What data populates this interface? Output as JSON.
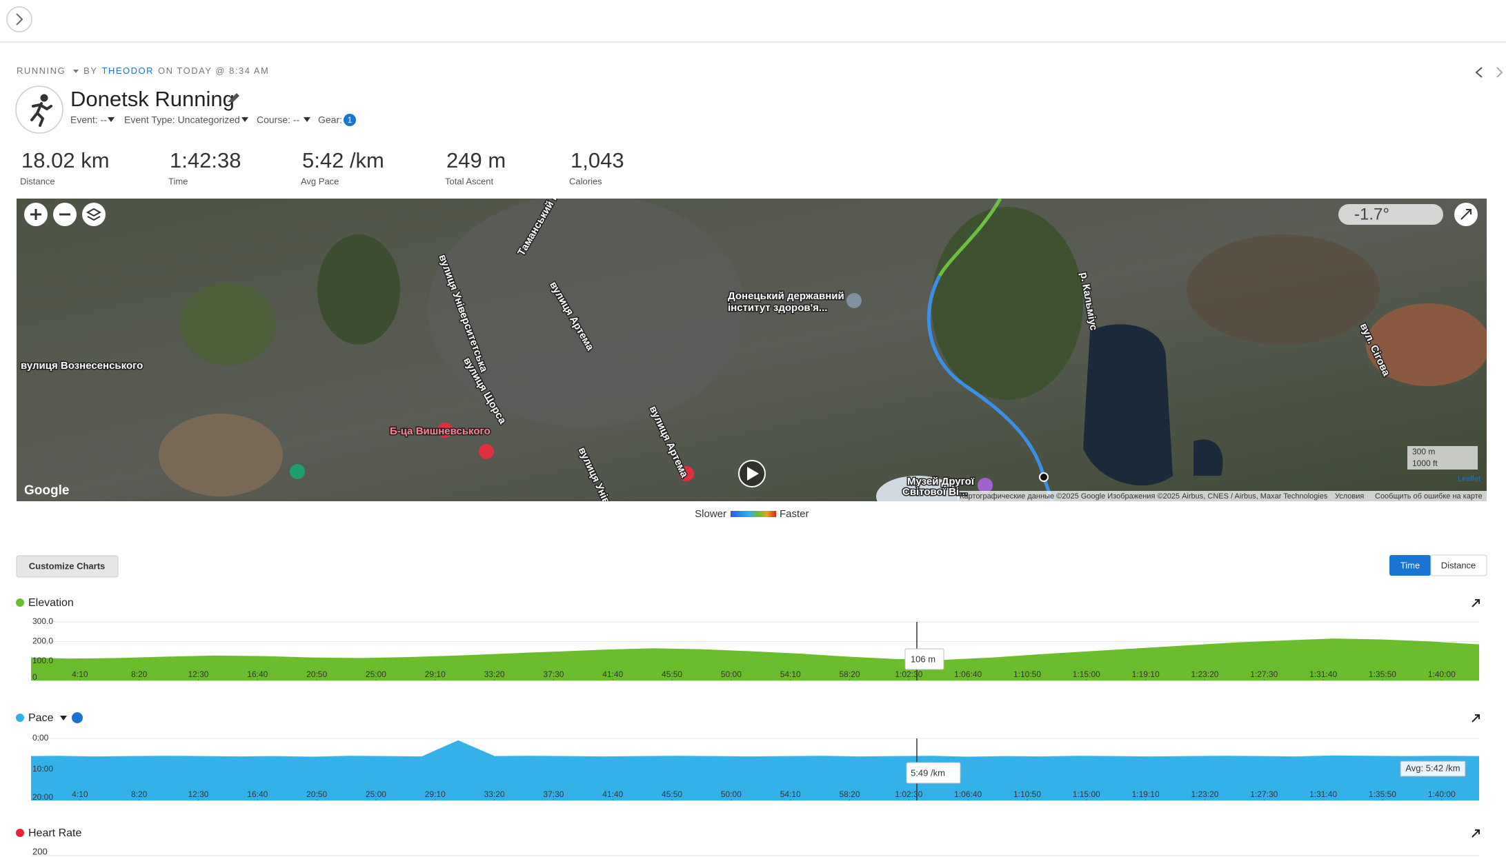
{
  "nav": {
    "activity_type": "RUNNING",
    "by": "BY",
    "user": "THEODOR",
    "when": "ON TODAY @ 8:34 AM"
  },
  "activity": {
    "title": "Donetsk Running",
    "fields": [
      "Event: --",
      "Event Type: Uncategorized",
      "Course: --",
      "Gear:"
    ],
    "gear_count": "1"
  },
  "stats": [
    {
      "value": "18.02 km",
      "label": "Distance"
    },
    {
      "value": "1:42:38",
      "label": "Time"
    },
    {
      "value": "5:42 /km",
      "label": "Avg Pace"
    },
    {
      "value": "249 m",
      "label": "Total Ascent"
    },
    {
      "value": "1,043",
      "label": "Calories"
    }
  ],
  "map": {
    "labels": [
      "вулиця Університетська",
      "Таманський проспект",
      "вулиця Артема",
      "вулиця Щорса",
      "Б-ца Вишневського",
      "Донецький державний",
      "інститут здоров'я...",
      "вулиця Вознесенського",
      "Музей Другої",
      "Світової Ві...",
      "вул. Сігова",
      "р. Кальміус",
      "вулиця Університетська",
      "вулиця Артема"
    ],
    "weather": "-1.7°",
    "brand": "Google",
    "scale_metric": "300 m",
    "scale_imperial": "1000 ft",
    "leaflet": "Leaflet",
    "attribution": "Картографические данные ©2025 Google Изображения ©2025 Airbus, CNES / Airbus, Maxar Technologies",
    "terms": "Условия",
    "report": "Сообщить об ошибке на карте"
  },
  "legend": {
    "slower": "Slower",
    "faster": "Faster"
  },
  "controls": {
    "customize": "Customize Charts",
    "toggle": [
      "Time",
      "Distance"
    ]
  },
  "charts": [
    {
      "title": "Elevation",
      "color": "#6cbd2d",
      "ylim": [
        0,
        300
      ],
      "yticks": [
        {
          "value": 300,
          "label": "300.0"
        },
        {
          "value": 200,
          "label": "200.0"
        },
        {
          "value": 100,
          "label": "100.0"
        },
        0
      ],
      "xlim": [
        0,
        6158
      ],
      "values": [
        118,
        112,
        115,
        122,
        128,
        125,
        118,
        115,
        120,
        128,
        138,
        148,
        158,
        165,
        160,
        150,
        138,
        122,
        110,
        106,
        118,
        135,
        150,
        165,
        180,
        195,
        205,
        215,
        210,
        200,
        185
      ],
      "tooltip": "106 m"
    },
    {
      "title": "Pace",
      "color": "#35b1ea",
      "ylim": [
        0,
        20
      ],
      "inverted": true,
      "yticks": [
        {
          "value": 0,
          "label": "0:00"
        },
        {
          "value": 10,
          "label": "10:00"
        },
        {
          "value": 20,
          "label": "20:00"
        }
      ],
      "xlim": [
        0,
        6158
      ],
      "values": [
        5.7,
        5.6,
        5.8,
        5.7,
        5.6,
        5.7,
        5.8,
        5.7,
        5.9,
        5.6,
        5.7,
        5.8,
        0.6,
        5.7,
        5.6,
        5.7,
        5.8,
        5.7,
        5.6,
        5.7,
        5.8,
        5.7,
        5.6,
        5.8,
        5.7,
        5.6,
        5.9,
        5.7,
        5.8,
        5.6,
        5.7,
        5.8,
        5.7,
        5.6,
        5.7,
        5.8,
        5.5,
        5.6,
        5.7,
        5.6,
        5.7
      ],
      "tooltip": "5:49 /km",
      "average": "Avg: 5:42 /km"
    },
    {
      "title": "Heart Rate",
      "color": "#e8203a",
      "yticks": [
        200
      ]
    }
  ],
  "xticks": [
    {
      "value": 250,
      "label": "4:10"
    },
    {
      "value": 500,
      "label": "8:20"
    },
    {
      "value": 750,
      "label": "12:30"
    },
    {
      "value": 1000,
      "label": "16:40"
    },
    {
      "value": 1250,
      "label": "20:50"
    },
    {
      "value": 1500,
      "label": "25:00"
    },
    {
      "value": 1750,
      "label": "29:10"
    },
    {
      "value": 2000,
      "label": "33:20"
    },
    {
      "value": 2250,
      "label": "37:30"
    },
    {
      "value": 2500,
      "label": "41:40"
    },
    {
      "value": 2750,
      "label": "45:50"
    },
    {
      "value": 3000,
      "label": "50:00"
    },
    {
      "value": 3250,
      "label": "54:10"
    },
    {
      "value": 3500,
      "label": "58:20"
    },
    {
      "value": 3750,
      "label": "1:02:30"
    },
    {
      "value": 4000,
      "label": "1:06:40"
    },
    {
      "value": 4250,
      "label": "1:10:50"
    },
    {
      "value": 4500,
      "label": "1:15:00"
    },
    {
      "value": 4750,
      "label": "1:19:10"
    },
    {
      "value": 5000,
      "label": "1:23:20"
    },
    {
      "value": 5250,
      "label": "1:27:30"
    },
    {
      "value": 5500,
      "label": "1:31:40"
    },
    {
      "value": 5750,
      "label": "1:35:50"
    },
    {
      "value": 6000,
      "label": "1:40:00"
    }
  ]
}
